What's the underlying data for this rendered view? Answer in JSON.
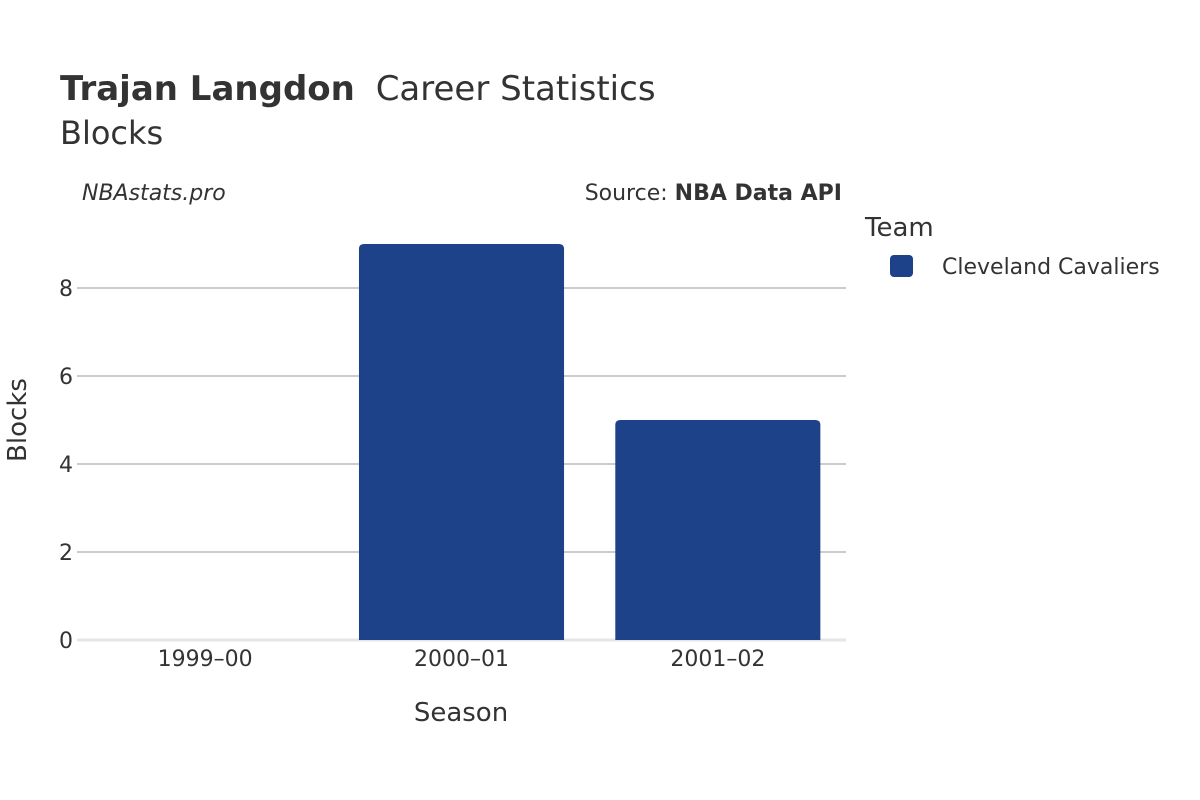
{
  "title": {
    "player": "Trajan Langdon",
    "suffix": "Career Statistics",
    "subtitle": "Blocks"
  },
  "watermark": "NBAstats.pro",
  "source": {
    "prefix": "Source: ",
    "name": "NBA Data API"
  },
  "legend": {
    "title": "Team"
  },
  "chart_data": {
    "type": "bar",
    "categories": [
      "1999–00",
      "2000–01",
      "2001–02"
    ],
    "series": [
      {
        "name": "Cleveland Cavaliers",
        "values": [
          0,
          9,
          5
        ],
        "color": "#1d4289"
      }
    ],
    "xlabel": "Season",
    "ylabel": "Blocks",
    "ylim": [
      0,
      9.5
    ],
    "yticks": [
      0,
      2,
      4,
      6,
      8
    ],
    "grid": true,
    "legend_position": "right"
  }
}
